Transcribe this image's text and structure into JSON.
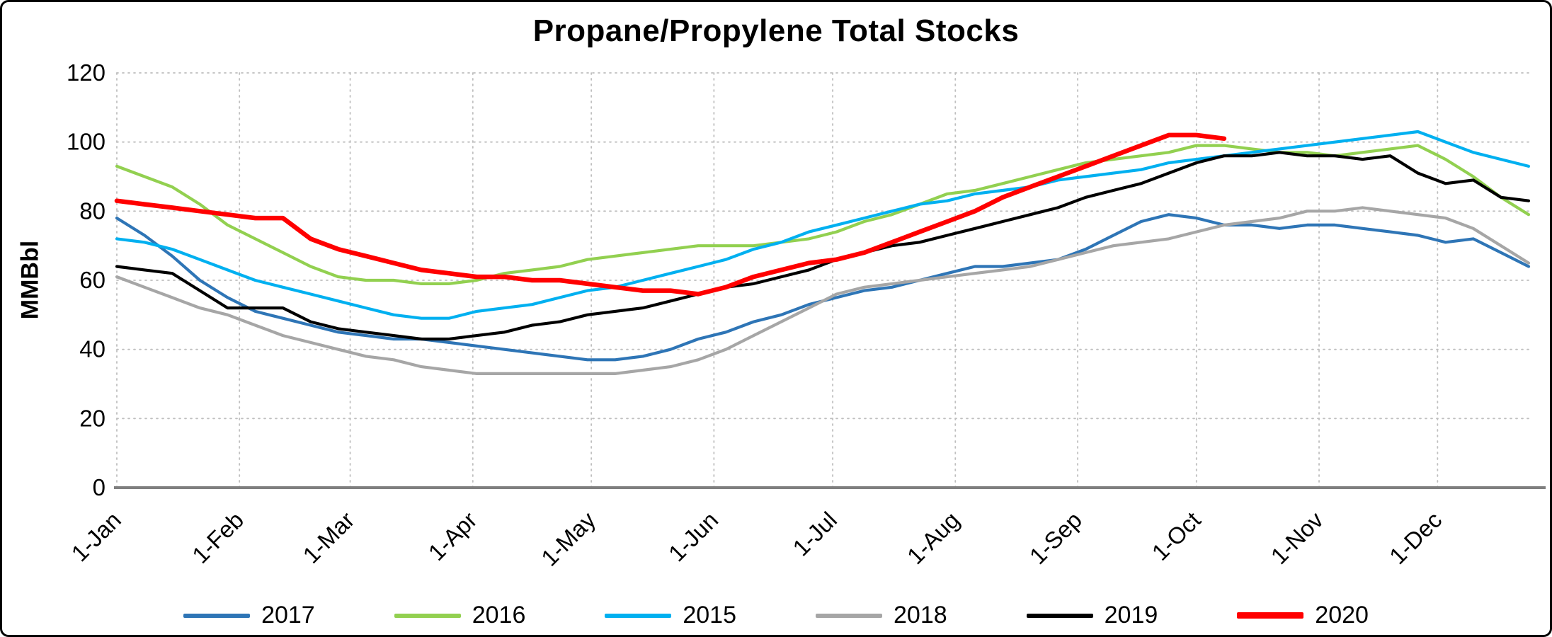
{
  "frame": {
    "background": "#ffffff",
    "border_color": "#000000"
  },
  "chart_data": {
    "type": "line",
    "title": "Propane/Propylene Total Stocks",
    "ylabel": "MMBbl",
    "ylim": [
      0,
      120
    ],
    "yticks": [
      0,
      20,
      40,
      60,
      80,
      100,
      120
    ],
    "grid": "dotted horizontal and vertical",
    "legend_position": "bottom",
    "x_unit": "weekly stock values, January through December",
    "x_weeks_total": 52,
    "x_ticks": [
      {
        "label": "1-Jan",
        "week": 0
      },
      {
        "label": "1-Feb",
        "week": 4.43
      },
      {
        "label": "1-Mar",
        "week": 8.43
      },
      {
        "label": "1-Apr",
        "week": 12.86
      },
      {
        "label": "1-May",
        "week": 17.14
      },
      {
        "label": "1-Jun",
        "week": 21.57
      },
      {
        "label": "1-Jul",
        "week": 25.86
      },
      {
        "label": "1-Aug",
        "week": 30.29
      },
      {
        "label": "1-Sep",
        "week": 34.71
      },
      {
        "label": "1-Oct",
        "week": 39.0
      },
      {
        "label": "1-Nov",
        "week": 43.43
      },
      {
        "label": "1-Dec",
        "week": 47.71
      }
    ],
    "series": [
      {
        "name": "2017",
        "color": "#2E75B6",
        "stroke_width": 4.2,
        "values": [
          78,
          73,
          67,
          60,
          55,
          51,
          49,
          47,
          45,
          44,
          43,
          43,
          42,
          41,
          40,
          39,
          38,
          37,
          37,
          38,
          40,
          43,
          45,
          48,
          50,
          53,
          55,
          57,
          58,
          60,
          62,
          64,
          64,
          65,
          66,
          69,
          73,
          77,
          79,
          78,
          76,
          76,
          75,
          76,
          76,
          75,
          74,
          73,
          71,
          72,
          68,
          64
        ]
      },
      {
        "name": "2016",
        "color": "#92D050",
        "stroke_width": 4.2,
        "values": [
          93,
          90,
          87,
          82,
          76,
          72,
          68,
          64,
          61,
          60,
          60,
          59,
          59,
          60,
          62,
          63,
          64,
          66,
          67,
          68,
          69,
          70,
          70,
          70,
          71,
          72,
          74,
          77,
          79,
          82,
          85,
          86,
          88,
          90,
          92,
          94,
          95,
          96,
          97,
          99,
          99,
          98,
          97,
          97,
          96,
          97,
          98,
          99,
          95,
          90,
          84,
          79
        ]
      },
      {
        "name": "2015",
        "color": "#00B0F0",
        "stroke_width": 4.2,
        "values": [
          72,
          71,
          69,
          66,
          63,
          60,
          58,
          56,
          54,
          52,
          50,
          49,
          49,
          51,
          52,
          53,
          55,
          57,
          58,
          60,
          62,
          64,
          66,
          69,
          71,
          74,
          76,
          78,
          80,
          82,
          83,
          85,
          86,
          87,
          89,
          90,
          91,
          92,
          94,
          95,
          96,
          97,
          98,
          99,
          100,
          101,
          102,
          103,
          100,
          97,
          95,
          93
        ]
      },
      {
        "name": "2018",
        "color": "#A6A6A6",
        "stroke_width": 4.2,
        "values": [
          61,
          58,
          55,
          52,
          50,
          47,
          44,
          42,
          40,
          38,
          37,
          35,
          34,
          33,
          33,
          33,
          33,
          33,
          33,
          34,
          35,
          37,
          40,
          44,
          48,
          52,
          56,
          58,
          59,
          60,
          61,
          62,
          63,
          64,
          66,
          68,
          70,
          71,
          72,
          74,
          76,
          77,
          78,
          80,
          80,
          81,
          80,
          79,
          78,
          75,
          70,
          65
        ]
      },
      {
        "name": "2019",
        "color": "#000000",
        "stroke_width": 4.2,
        "values": [
          64,
          63,
          62,
          57,
          52,
          52,
          52,
          48,
          46,
          45,
          44,
          43,
          43,
          44,
          45,
          47,
          48,
          50,
          51,
          52,
          54,
          56,
          58,
          59,
          61,
          63,
          66,
          68,
          70,
          71,
          73,
          75,
          77,
          79,
          81,
          84,
          86,
          88,
          91,
          94,
          96,
          96,
          97,
          96,
          96,
          95,
          96,
          91,
          88,
          89,
          84,
          83
        ]
      },
      {
        "name": "2020",
        "color": "#FF0000",
        "stroke_width": 6.5,
        "values": [
          83,
          82,
          81,
          80,
          79,
          78,
          78,
          72,
          69,
          67,
          65,
          63,
          62,
          61,
          61,
          60,
          60,
          59,
          58,
          57,
          57,
          56,
          58,
          61,
          63,
          65,
          66,
          68,
          71,
          74,
          77,
          80,
          84,
          87,
          90,
          93,
          96,
          99,
          102,
          102,
          101
        ]
      }
    ]
  }
}
